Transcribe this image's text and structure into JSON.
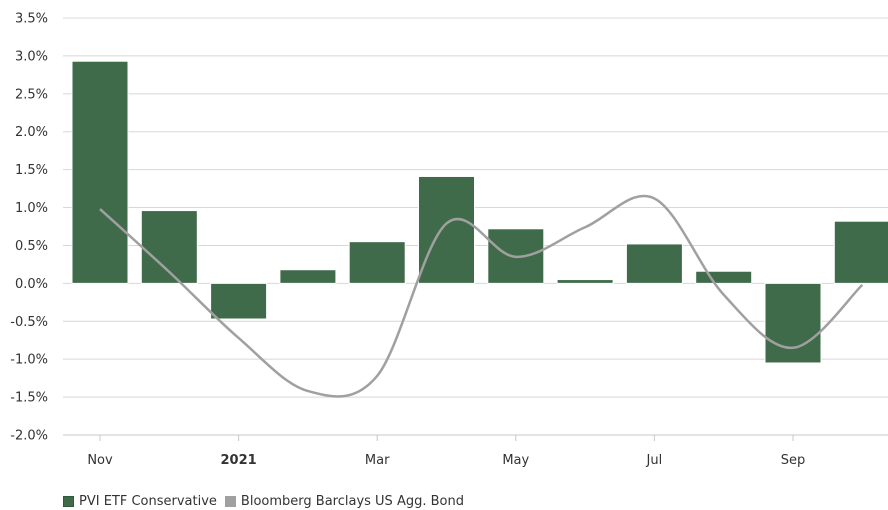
{
  "chart_data": {
    "type": "bar",
    "ylim": [
      -2.0,
      3.5
    ],
    "y_ticks": [
      "3.5%",
      "3.0%",
      "2.5%",
      "2.0%",
      "1.5%",
      "1.0%",
      "0.5%",
      "0.0%",
      "-0.5%",
      "-1.0%",
      "-1.5%",
      "-2.0%"
    ],
    "y_tick_values": [
      3.5,
      3.0,
      2.5,
      2.0,
      1.5,
      1.0,
      0.5,
      0.0,
      -0.5,
      -1.0,
      -1.5,
      -2.0
    ],
    "x_ticks": [
      {
        "label": "Nov",
        "month_index": 0,
        "bold": false
      },
      {
        "label": "2021",
        "month_index": 2,
        "bold": true
      },
      {
        "label": "Mar",
        "month_index": 4,
        "bold": false
      },
      {
        "label": "May",
        "month_index": 6,
        "bold": false
      },
      {
        "label": "Jul",
        "month_index": 8,
        "bold": false
      },
      {
        "label": "Sep",
        "month_index": 10,
        "bold": false
      }
    ],
    "grid": true,
    "legend_position": "bottom-left",
    "series": [
      {
        "name": "PVI ETF Conservative",
        "kind": "bar",
        "color": "#3f6b4a",
        "values": [
          2.93,
          0.96,
          -0.47,
          0.18,
          0.55,
          1.41,
          0.72,
          0.05,
          0.52,
          0.16,
          -1.05,
          0.82
        ]
      },
      {
        "name": "Bloomberg Barclays US Agg. Bond",
        "kind": "line",
        "color": "#a0a0a0",
        "values": [
          0.98,
          0.15,
          -0.72,
          -1.42,
          -1.22,
          0.79,
          0.35,
          0.74,
          1.12,
          -0.15,
          -0.85,
          -0.02
        ]
      }
    ]
  }
}
